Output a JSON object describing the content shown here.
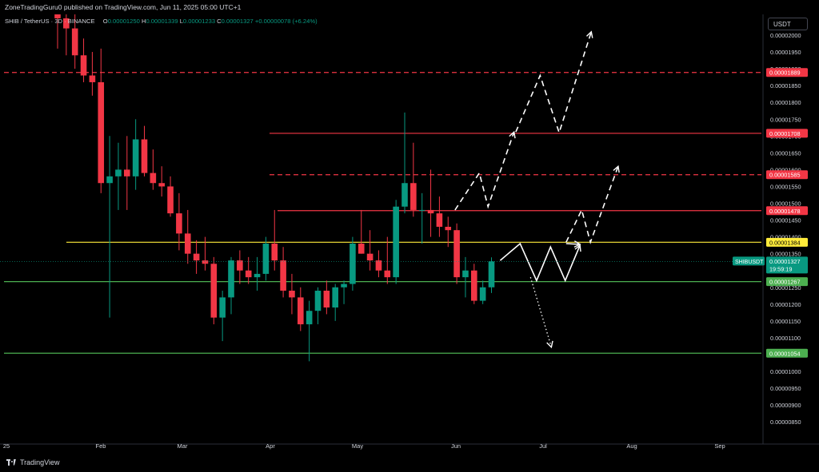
{
  "header": {
    "publish_line": "ZoneTradingGuru0 published on TradingView.com, Jun 11, 2025 05:00 UTC+1"
  },
  "legend": {
    "symbol": "SHIB / TetherUS · 3D · BINANCE",
    "o_label": "O",
    "o_value": "0.00001250",
    "h_label": "H",
    "h_value": "0.00001339",
    "l_label": "L",
    "l_value": "0.00001233",
    "c_label": "C",
    "c_value": "0.00001327",
    "change": "+0.00000078 (+6.24%)"
  },
  "price_axis": {
    "unit_button": "USDT"
  },
  "footer": {
    "brand": "TradingView"
  },
  "colors": {
    "background": "#000000",
    "up": "#089981",
    "down": "#f23645",
    "resistance": "#f23645",
    "support": "#4caf50",
    "pivot": "#ffeb3b",
    "projection": "#ffffff"
  },
  "chart_data": {
    "type": "candlestick",
    "symbol": "SHIBUSDT",
    "timeframe": "3D",
    "ylim": [
      8.2e-06,
      2.1e-05
    ],
    "y_ticks": [
      "0.00002000",
      "0.00001950",
      "0.00001900",
      "0.00001850",
      "0.00001800",
      "0.00001750",
      "0.00001700",
      "0.00001650",
      "0.00001600",
      "0.00001550",
      "0.00001500",
      "0.00001450",
      "0.00001400",
      "0.00001350",
      "0.00001300",
      "0.00001250",
      "0.00001200",
      "0.00001150",
      "0.00001100",
      "0.00001050",
      "0.00001000",
      "0.00000950",
      "0.00000900",
      "0.00000850"
    ],
    "x_ticks": [
      "25",
      "Feb",
      "Mar",
      "Apr",
      "May",
      "Jun",
      "Jul",
      "Aug",
      "Sep"
    ],
    "current_price": {
      "label": "SHIBUSDT",
      "value": "0.00001327",
      "countdown": "19:59:19"
    },
    "levels": [
      {
        "value": 1.889e-05,
        "label": "0.00001889",
        "kind": "resistance",
        "style": "dashed"
      },
      {
        "value": 1.708e-05,
        "label": "0.00001708",
        "kind": "resistance",
        "style": "solid"
      },
      {
        "value": 1.585e-05,
        "label": "0.00001585",
        "kind": "resistance",
        "style": "dashed"
      },
      {
        "value": 1.478e-05,
        "label": "0.00001478",
        "kind": "resistance",
        "style": "solid"
      },
      {
        "value": 1.384e-05,
        "label": "0.00001384",
        "kind": "pivot",
        "style": "solid"
      },
      {
        "value": 1.267e-05,
        "label": "0.00001267",
        "kind": "support",
        "style": "solid"
      },
      {
        "value": 1.054e-05,
        "label": "0.00001054",
        "kind": "support",
        "style": "solid"
      }
    ],
    "candles": [
      [
        2.18e-05,
        2.27e-05,
        1.96e-05,
        2.05e-05
      ],
      [
        2.05e-05,
        2.13e-05,
        1.94e-05,
        2.02e-05
      ],
      [
        2.02e-05,
        2.11e-05,
        1.9e-05,
        1.94e-05
      ],
      [
        1.94e-05,
        1.99e-05,
        1.86e-05,
        1.88e-05
      ],
      [
        1.88e-05,
        1.95e-05,
        1.82e-05,
        1.86e-05
      ],
      [
        1.86e-05,
        1.96e-05,
        1.53e-05,
        1.56e-05
      ],
      [
        1.56e-05,
        1.7e-05,
        1.16e-05,
        1.58e-05
      ],
      [
        1.58e-05,
        1.68e-05,
        1.48e-05,
        1.6e-05
      ],
      [
        1.6e-05,
        1.7e-05,
        1.48e-05,
        1.58e-05
      ],
      [
        1.58e-05,
        1.75e-05,
        1.54e-05,
        1.69e-05
      ],
      [
        1.69e-05,
        1.73e-05,
        1.58e-05,
        1.59e-05
      ],
      [
        1.59e-05,
        1.66e-05,
        1.54e-05,
        1.56e-05
      ],
      [
        1.56e-05,
        1.61e-05,
        1.52e-05,
        1.55e-05
      ],
      [
        1.55e-05,
        1.58e-05,
        1.46e-05,
        1.47e-05
      ],
      [
        1.47e-05,
        1.53e-05,
        1.36e-05,
        1.41e-05
      ],
      [
        1.41e-05,
        1.48e-05,
        1.32e-05,
        1.35e-05
      ],
      [
        1.35e-05,
        1.39e-05,
        1.29e-05,
        1.33e-05
      ],
      [
        1.33e-05,
        1.4e-05,
        1.3e-05,
        1.32e-05
      ],
      [
        1.32e-05,
        1.34e-05,
        1.14e-05,
        1.16e-05
      ],
      [
        1.16e-05,
        1.24e-05,
        1.09e-05,
        1.22e-05
      ],
      [
        1.22e-05,
        1.34e-05,
        1.17e-05,
        1.33e-05
      ],
      [
        1.33e-05,
        1.36e-05,
        1.26e-05,
        1.3e-05
      ],
      [
        1.3e-05,
        1.34e-05,
        1.26e-05,
        1.28e-05
      ],
      [
        1.28e-05,
        1.34e-05,
        1.24e-05,
        1.29e-05
      ],
      [
        1.29e-05,
        1.4e-05,
        1.27e-05,
        1.38e-05
      ],
      [
        1.38e-05,
        1.48e-05,
        1.3e-05,
        1.33e-05
      ],
      [
        1.33e-05,
        1.37e-05,
        1.22e-05,
        1.24e-05
      ],
      [
        1.24e-05,
        1.29e-05,
        1.17e-05,
        1.22e-05
      ],
      [
        1.22e-05,
        1.25e-05,
        1.12e-05,
        1.14e-05
      ],
      [
        1.14e-05,
        1.21e-05,
        1.03e-05,
        1.18e-05
      ],
      [
        1.18e-05,
        1.25e-05,
        1.14e-05,
        1.24e-05
      ],
      [
        1.24e-05,
        1.27e-05,
        1.17e-05,
        1.19e-05
      ],
      [
        1.19e-05,
        1.26e-05,
        1.15e-05,
        1.25e-05
      ],
      [
        1.25e-05,
        1.27e-05,
        1.2e-05,
        1.26e-05
      ],
      [
        1.26e-05,
        1.4e-05,
        1.24e-05,
        1.38e-05
      ],
      [
        1.38e-05,
        1.48e-05,
        1.35e-05,
        1.35e-05
      ],
      [
        1.35e-05,
        1.42e-05,
        1.3e-05,
        1.33e-05
      ],
      [
        1.33e-05,
        1.36e-05,
        1.28e-05,
        1.3e-05
      ],
      [
        1.3e-05,
        1.4e-05,
        1.26e-05,
        1.28e-05
      ],
      [
        1.28e-05,
        1.51e-05,
        1.26e-05,
        1.49e-05
      ],
      [
        1.49e-05,
        1.77e-05,
        1.47e-05,
        1.56e-05
      ],
      [
        1.56e-05,
        1.68e-05,
        1.46e-05,
        1.48e-05
      ],
      [
        1.48e-05,
        1.53e-05,
        1.38e-05,
        1.48e-05
      ],
      [
        1.48e-05,
        1.6e-05,
        1.4e-05,
        1.47e-05
      ],
      [
        1.47e-05,
        1.52e-05,
        1.4e-05,
        1.43e-05
      ],
      [
        1.43e-05,
        1.46e-05,
        1.37e-05,
        1.42e-05
      ],
      [
        1.42e-05,
        1.44e-05,
        1.26e-05,
        1.28e-05
      ],
      [
        1.28e-05,
        1.34e-05,
        1.22e-05,
        1.3e-05
      ],
      [
        1.3e-05,
        1.32e-05,
        1.2e-05,
        1.21e-05
      ],
      [
        1.21e-05,
        1.27e-05,
        1.2e-05,
        1.25e-05
      ],
      [
        1.25e-05,
        1.339e-05,
        1.233e-05,
        1.327e-05
      ]
    ],
    "projections": [
      {
        "style": "solid",
        "points": [
          [
            51.0,
            1.33e-05
          ],
          [
            53.3,
            1.38e-05
          ],
          [
            55.2,
            1.27e-05
          ],
          [
            56.8,
            1.37e-05
          ],
          [
            58.5,
            1.27e-05
          ],
          [
            60.2,
            1.375e-05
          ]
        ]
      },
      {
        "style": "solid-arrow",
        "points": [
          [
            58.6,
            1.38e-05
          ],
          [
            60.2,
            1.378e-05
          ]
        ]
      },
      {
        "style": "dotted",
        "points": [
          [
            54.5,
            1.28e-05
          ],
          [
            56.9,
            1.072e-05
          ]
        ]
      },
      {
        "style": "dashed",
        "points": [
          [
            45.8,
            1.48e-05
          ],
          [
            48.6,
            1.59e-05
          ],
          [
            49.6,
            1.49e-05
          ],
          [
            52.6,
            1.712e-05
          ]
        ]
      },
      {
        "style": "dashed",
        "points": [
          [
            52.8,
            1.712e-05
          ],
          [
            55.6,
            1.88e-05
          ],
          [
            57.8,
            1.71e-05
          ],
          [
            61.5,
            2.01e-05
          ]
        ]
      },
      {
        "style": "dashed",
        "points": [
          [
            58.6,
            1.384e-05
          ],
          [
            60.4,
            1.48e-05
          ],
          [
            61.4,
            1.384e-05
          ],
          [
            64.6,
            1.61e-05
          ]
        ]
      }
    ]
  }
}
